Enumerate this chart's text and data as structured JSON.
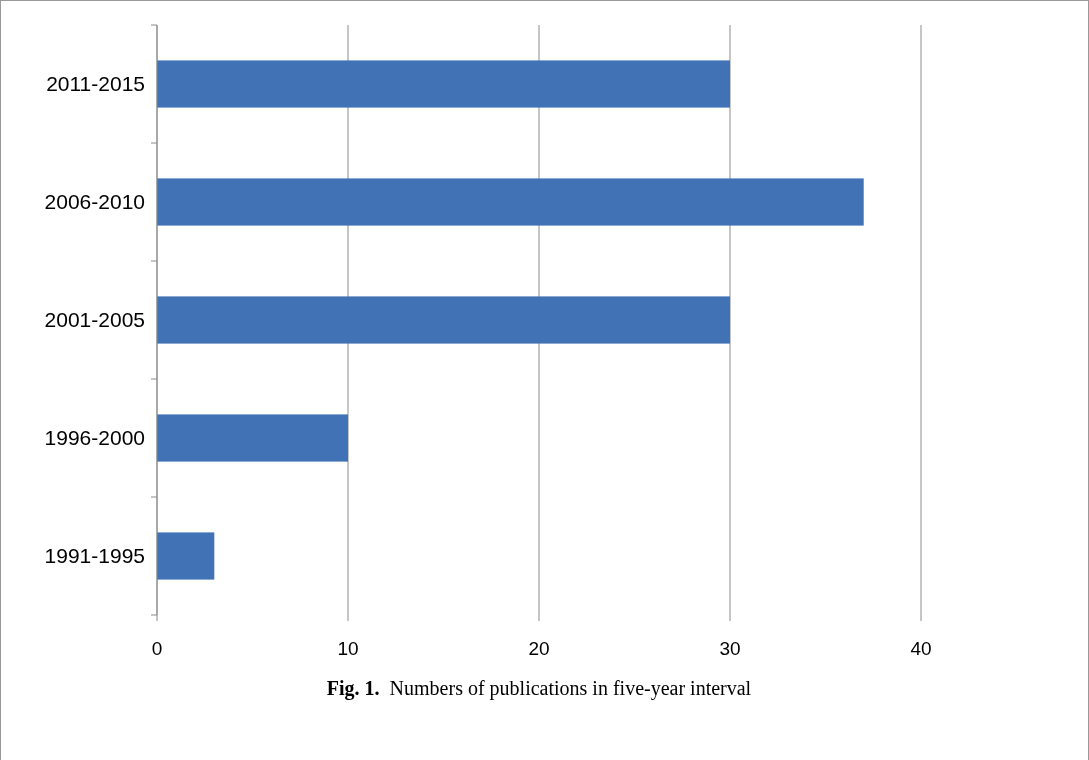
{
  "chart_data": {
    "type": "bar",
    "orientation": "horizontal",
    "categories": [
      "2011-2015",
      "2006-2010",
      "2001-2005",
      "1996-2000",
      "1991-1995"
    ],
    "values": [
      30,
      37,
      30,
      10,
      3
    ],
    "color": "#4172b6",
    "xlim": [
      0,
      40
    ],
    "xticks": [
      0,
      10,
      20,
      30,
      40
    ],
    "grid": "x",
    "annotations": [
      "Fig. 1.  Numbers of publications in five-year interval"
    ]
  }
}
